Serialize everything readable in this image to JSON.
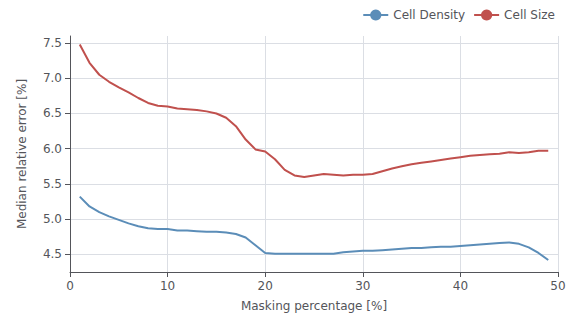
{
  "chart_data": {
    "type": "line",
    "xlabel": "Masking percentage [%]",
    "ylabel": "Median relative error [%]",
    "x": [
      1,
      2,
      3,
      4,
      5,
      6,
      7,
      8,
      9,
      10,
      11,
      12,
      13,
      14,
      15,
      16,
      17,
      18,
      19,
      20,
      21,
      22,
      23,
      24,
      25,
      26,
      27,
      28,
      29,
      30,
      31,
      32,
      33,
      34,
      35,
      36,
      37,
      38,
      39,
      40,
      41,
      42,
      43,
      44,
      45,
      46,
      47,
      48,
      49
    ],
    "series": [
      {
        "name": "Cell Density",
        "color": "#5b8db8",
        "values": [
          5.32,
          5.18,
          5.1,
          5.04,
          4.99,
          4.94,
          4.9,
          4.87,
          4.86,
          4.86,
          4.84,
          4.84,
          4.83,
          4.82,
          4.82,
          4.81,
          4.79,
          4.74,
          4.63,
          4.52,
          4.51,
          4.51,
          4.51,
          4.51,
          4.51,
          4.51,
          4.51,
          4.53,
          4.54,
          4.55,
          4.55,
          4.56,
          4.57,
          4.58,
          4.59,
          4.59,
          4.6,
          4.61,
          4.61,
          4.62,
          4.63,
          4.64,
          4.65,
          4.66,
          4.67,
          4.65,
          4.6,
          4.52,
          4.42
        ]
      },
      {
        "name": "Cell Size",
        "color": "#c0504d",
        "values": [
          7.48,
          7.22,
          7.05,
          6.95,
          6.87,
          6.8,
          6.72,
          6.65,
          6.61,
          6.6,
          6.57,
          6.56,
          6.55,
          6.53,
          6.5,
          6.44,
          6.32,
          6.13,
          5.99,
          5.96,
          5.85,
          5.7,
          5.62,
          5.6,
          5.62,
          5.64,
          5.63,
          5.62,
          5.63,
          5.63,
          5.64,
          5.68,
          5.72,
          5.75,
          5.78,
          5.8,
          5.82,
          5.84,
          5.86,
          5.88,
          5.9,
          5.91,
          5.92,
          5.93,
          5.95,
          5.94,
          5.95,
          5.97,
          5.97
        ]
      }
    ],
    "xlim": [
      0,
      50
    ],
    "ylim": [
      4.25,
      7.6
    ],
    "xticks": [
      0,
      10,
      20,
      30,
      40,
      50
    ],
    "yticks": [
      4.5,
      {
        "value": 5.0,
        "label": "5.0"
      },
      5.5,
      {
        "value": 6.0,
        "label": "6.0"
      },
      6.5,
      {
        "value": 7.0,
        "label": "7.0"
      },
      7.5
    ],
    "grid": true,
    "legend": "upper right"
  }
}
